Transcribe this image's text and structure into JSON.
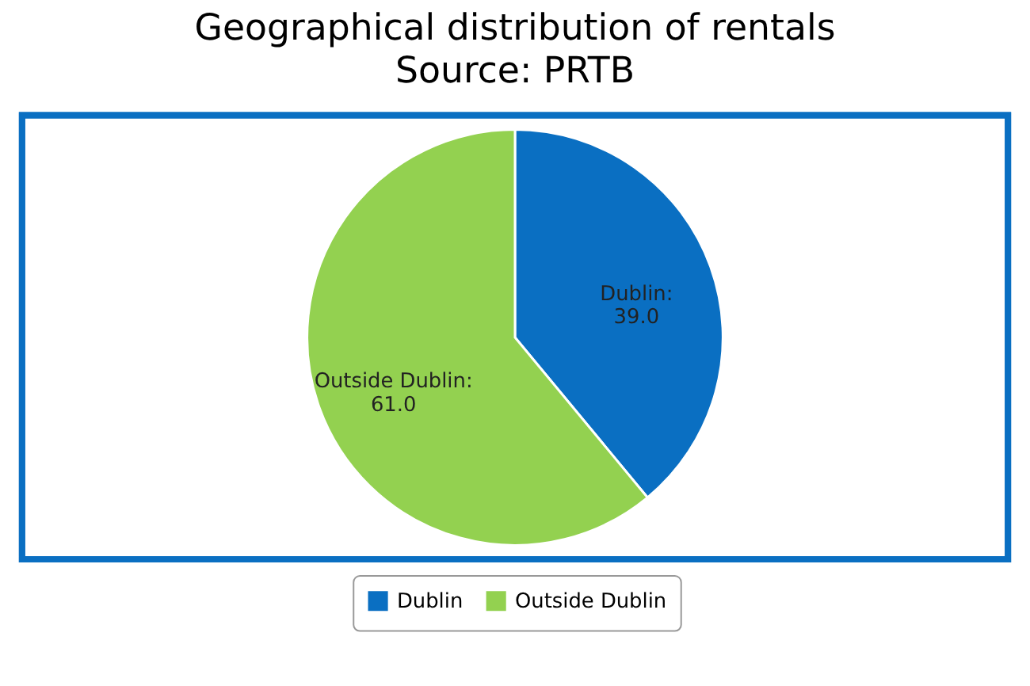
{
  "chart_data": {
    "type": "pie",
    "title": "Geographical distribution of rentals",
    "subtitle": "Source: PRTB",
    "categories": [
      "Dublin",
      "Outside Dublin"
    ],
    "values": [
      39.0,
      61.0
    ],
    "colors": [
      "#0a6fc2",
      "#93d150"
    ],
    "value_labels": [
      "Dublin:\n39.0",
      "Outside Dublin:\n61.0"
    ],
    "legend": "bottom"
  }
}
